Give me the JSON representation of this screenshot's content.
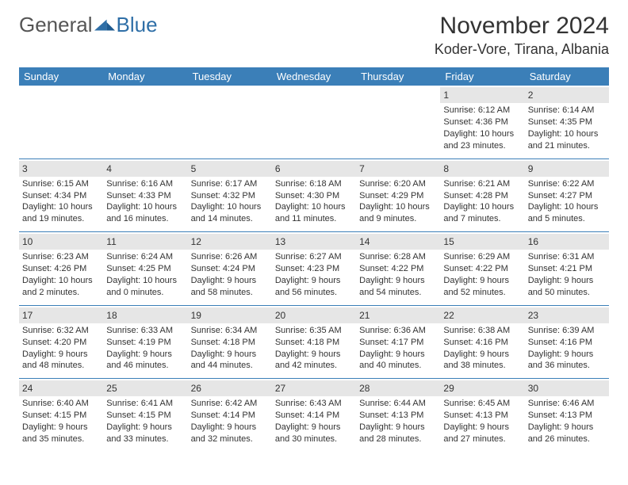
{
  "logo": {
    "text_grey": "General",
    "text_blue": "Blue"
  },
  "header": {
    "month_title": "November 2024",
    "location": "Koder-Vore, Tirana, Albania"
  },
  "colors": {
    "header_bg": "#3b7fb8",
    "header_text": "#ffffff",
    "daynum_bg": "#e6e6e6",
    "row_divider": "#3b7fb8",
    "body_text": "#333333",
    "logo_grey": "#555555",
    "logo_blue": "#2f6fa7",
    "page_bg": "#ffffff"
  },
  "typography": {
    "month_title_fontsize": 30,
    "location_fontsize": 18,
    "weekday_fontsize": 13,
    "daynum_fontsize": 12,
    "cell_fontsize": 11
  },
  "calendar": {
    "weekdays": [
      "Sunday",
      "Monday",
      "Tuesday",
      "Wednesday",
      "Thursday",
      "Friday",
      "Saturday"
    ],
    "weeks": [
      [
        {
          "empty": true
        },
        {
          "empty": true
        },
        {
          "empty": true
        },
        {
          "empty": true
        },
        {
          "empty": true
        },
        {
          "day": "1",
          "sunrise": "Sunrise: 6:12 AM",
          "sunset": "Sunset: 4:36 PM",
          "daylight1": "Daylight: 10 hours",
          "daylight2": "and 23 minutes."
        },
        {
          "day": "2",
          "sunrise": "Sunrise: 6:14 AM",
          "sunset": "Sunset: 4:35 PM",
          "daylight1": "Daylight: 10 hours",
          "daylight2": "and 21 minutes."
        }
      ],
      [
        {
          "day": "3",
          "sunrise": "Sunrise: 6:15 AM",
          "sunset": "Sunset: 4:34 PM",
          "daylight1": "Daylight: 10 hours",
          "daylight2": "and 19 minutes."
        },
        {
          "day": "4",
          "sunrise": "Sunrise: 6:16 AM",
          "sunset": "Sunset: 4:33 PM",
          "daylight1": "Daylight: 10 hours",
          "daylight2": "and 16 minutes."
        },
        {
          "day": "5",
          "sunrise": "Sunrise: 6:17 AM",
          "sunset": "Sunset: 4:32 PM",
          "daylight1": "Daylight: 10 hours",
          "daylight2": "and 14 minutes."
        },
        {
          "day": "6",
          "sunrise": "Sunrise: 6:18 AM",
          "sunset": "Sunset: 4:30 PM",
          "daylight1": "Daylight: 10 hours",
          "daylight2": "and 11 minutes."
        },
        {
          "day": "7",
          "sunrise": "Sunrise: 6:20 AM",
          "sunset": "Sunset: 4:29 PM",
          "daylight1": "Daylight: 10 hours",
          "daylight2": "and 9 minutes."
        },
        {
          "day": "8",
          "sunrise": "Sunrise: 6:21 AM",
          "sunset": "Sunset: 4:28 PM",
          "daylight1": "Daylight: 10 hours",
          "daylight2": "and 7 minutes."
        },
        {
          "day": "9",
          "sunrise": "Sunrise: 6:22 AM",
          "sunset": "Sunset: 4:27 PM",
          "daylight1": "Daylight: 10 hours",
          "daylight2": "and 5 minutes."
        }
      ],
      [
        {
          "day": "10",
          "sunrise": "Sunrise: 6:23 AM",
          "sunset": "Sunset: 4:26 PM",
          "daylight1": "Daylight: 10 hours",
          "daylight2": "and 2 minutes."
        },
        {
          "day": "11",
          "sunrise": "Sunrise: 6:24 AM",
          "sunset": "Sunset: 4:25 PM",
          "daylight1": "Daylight: 10 hours",
          "daylight2": "and 0 minutes."
        },
        {
          "day": "12",
          "sunrise": "Sunrise: 6:26 AM",
          "sunset": "Sunset: 4:24 PM",
          "daylight1": "Daylight: 9 hours",
          "daylight2": "and 58 minutes."
        },
        {
          "day": "13",
          "sunrise": "Sunrise: 6:27 AM",
          "sunset": "Sunset: 4:23 PM",
          "daylight1": "Daylight: 9 hours",
          "daylight2": "and 56 minutes."
        },
        {
          "day": "14",
          "sunrise": "Sunrise: 6:28 AM",
          "sunset": "Sunset: 4:22 PM",
          "daylight1": "Daylight: 9 hours",
          "daylight2": "and 54 minutes."
        },
        {
          "day": "15",
          "sunrise": "Sunrise: 6:29 AM",
          "sunset": "Sunset: 4:22 PM",
          "daylight1": "Daylight: 9 hours",
          "daylight2": "and 52 minutes."
        },
        {
          "day": "16",
          "sunrise": "Sunrise: 6:31 AM",
          "sunset": "Sunset: 4:21 PM",
          "daylight1": "Daylight: 9 hours",
          "daylight2": "and 50 minutes."
        }
      ],
      [
        {
          "day": "17",
          "sunrise": "Sunrise: 6:32 AM",
          "sunset": "Sunset: 4:20 PM",
          "daylight1": "Daylight: 9 hours",
          "daylight2": "and 48 minutes."
        },
        {
          "day": "18",
          "sunrise": "Sunrise: 6:33 AM",
          "sunset": "Sunset: 4:19 PM",
          "daylight1": "Daylight: 9 hours",
          "daylight2": "and 46 minutes."
        },
        {
          "day": "19",
          "sunrise": "Sunrise: 6:34 AM",
          "sunset": "Sunset: 4:18 PM",
          "daylight1": "Daylight: 9 hours",
          "daylight2": "and 44 minutes."
        },
        {
          "day": "20",
          "sunrise": "Sunrise: 6:35 AM",
          "sunset": "Sunset: 4:18 PM",
          "daylight1": "Daylight: 9 hours",
          "daylight2": "and 42 minutes."
        },
        {
          "day": "21",
          "sunrise": "Sunrise: 6:36 AM",
          "sunset": "Sunset: 4:17 PM",
          "daylight1": "Daylight: 9 hours",
          "daylight2": "and 40 minutes."
        },
        {
          "day": "22",
          "sunrise": "Sunrise: 6:38 AM",
          "sunset": "Sunset: 4:16 PM",
          "daylight1": "Daylight: 9 hours",
          "daylight2": "and 38 minutes."
        },
        {
          "day": "23",
          "sunrise": "Sunrise: 6:39 AM",
          "sunset": "Sunset: 4:16 PM",
          "daylight1": "Daylight: 9 hours",
          "daylight2": "and 36 minutes."
        }
      ],
      [
        {
          "day": "24",
          "sunrise": "Sunrise: 6:40 AM",
          "sunset": "Sunset: 4:15 PM",
          "daylight1": "Daylight: 9 hours",
          "daylight2": "and 35 minutes."
        },
        {
          "day": "25",
          "sunrise": "Sunrise: 6:41 AM",
          "sunset": "Sunset: 4:15 PM",
          "daylight1": "Daylight: 9 hours",
          "daylight2": "and 33 minutes."
        },
        {
          "day": "26",
          "sunrise": "Sunrise: 6:42 AM",
          "sunset": "Sunset: 4:14 PM",
          "daylight1": "Daylight: 9 hours",
          "daylight2": "and 32 minutes."
        },
        {
          "day": "27",
          "sunrise": "Sunrise: 6:43 AM",
          "sunset": "Sunset: 4:14 PM",
          "daylight1": "Daylight: 9 hours",
          "daylight2": "and 30 minutes."
        },
        {
          "day": "28",
          "sunrise": "Sunrise: 6:44 AM",
          "sunset": "Sunset: 4:13 PM",
          "daylight1": "Daylight: 9 hours",
          "daylight2": "and 28 minutes."
        },
        {
          "day": "29",
          "sunrise": "Sunrise: 6:45 AM",
          "sunset": "Sunset: 4:13 PM",
          "daylight1": "Daylight: 9 hours",
          "daylight2": "and 27 minutes."
        },
        {
          "day": "30",
          "sunrise": "Sunrise: 6:46 AM",
          "sunset": "Sunset: 4:13 PM",
          "daylight1": "Daylight: 9 hours",
          "daylight2": "and 26 minutes."
        }
      ]
    ]
  }
}
